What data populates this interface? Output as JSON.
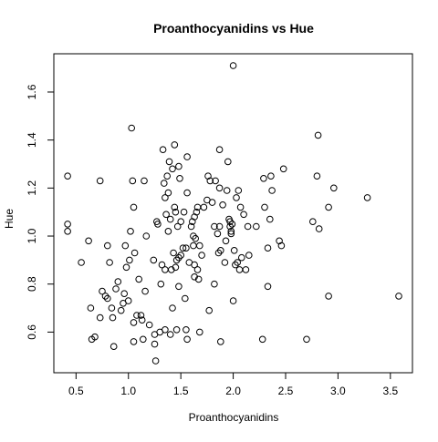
{
  "chart_data": {
    "type": "scatter",
    "title": "Proanthocyanidins vs Hue",
    "xlabel": "Proanthocyanidins",
    "ylabel": "Hue",
    "xlim": [
      0.41,
      3.58
    ],
    "ylim": [
      0.48,
      1.71
    ],
    "xticks": [
      0.5,
      1.0,
      1.5,
      2.0,
      2.5,
      3.0,
      3.5
    ],
    "xtick_labels": [
      "0.5",
      "1.0",
      "1.5",
      "2.0",
      "2.5",
      "3.0",
      "3.5"
    ],
    "yticks": [
      0.6,
      0.8,
      1.0,
      1.2,
      1.4,
      1.6
    ],
    "ytick_labels": [
      "0.6",
      "0.8",
      "1.0",
      "1.2",
      "1.4",
      "1.6"
    ],
    "grid": false,
    "legend": "none",
    "points": [
      [
        0.42,
        1.25
      ],
      [
        0.42,
        1.05
      ],
      [
        0.42,
        1.02
      ],
      [
        0.55,
        0.89
      ],
      [
        0.62,
        0.98
      ],
      [
        0.64,
        0.7
      ],
      [
        0.65,
        0.57
      ],
      [
        0.68,
        0.58
      ],
      [
        0.73,
        1.23
      ],
      [
        0.73,
        0.66
      ],
      [
        0.75,
        0.77
      ],
      [
        0.78,
        0.75
      ],
      [
        0.8,
        0.96
      ],
      [
        0.8,
        0.74
      ],
      [
        0.82,
        0.89
      ],
      [
        0.84,
        0.7
      ],
      [
        0.85,
        0.66
      ],
      [
        0.86,
        0.54
      ],
      [
        0.88,
        0.78
      ],
      [
        0.9,
        0.81
      ],
      [
        0.93,
        0.69
      ],
      [
        0.95,
        0.72
      ],
      [
        0.96,
        0.76
      ],
      [
        0.97,
        0.96
      ],
      [
        0.98,
        0.87
      ],
      [
        1.0,
        0.73
      ],
      [
        1.01,
        0.9
      ],
      [
        1.02,
        1.02
      ],
      [
        1.03,
        1.45
      ],
      [
        1.04,
        1.23
      ],
      [
        1.05,
        1.12
      ],
      [
        1.05,
        0.64
      ],
      [
        1.05,
        0.56
      ],
      [
        1.06,
        0.93
      ],
      [
        1.08,
        0.67
      ],
      [
        1.1,
        0.82
      ],
      [
        1.12,
        0.67
      ],
      [
        1.13,
        0.65
      ],
      [
        1.14,
        0.57
      ],
      [
        1.15,
        1.23
      ],
      [
        1.16,
        0.77
      ],
      [
        1.17,
        1.0
      ],
      [
        1.2,
        0.63
      ],
      [
        1.24,
        0.9
      ],
      [
        1.25,
        0.59
      ],
      [
        1.25,
        0.55
      ],
      [
        1.26,
        0.48
      ],
      [
        1.27,
        1.06
      ],
      [
        1.28,
        1.05
      ],
      [
        1.3,
        0.6
      ],
      [
        1.31,
        0.8
      ],
      [
        1.32,
        0.88
      ],
      [
        1.33,
        1.36
      ],
      [
        1.34,
        1.22
      ],
      [
        1.35,
        1.16
      ],
      [
        1.35,
        0.86
      ],
      [
        1.35,
        0.61
      ],
      [
        1.36,
        1.09
      ],
      [
        1.37,
        1.25
      ],
      [
        1.38,
        1.02
      ],
      [
        1.38,
        1.18
      ],
      [
        1.39,
        1.31
      ],
      [
        1.4,
        1.07
      ],
      [
        1.4,
        0.59
      ],
      [
        1.41,
        0.86
      ],
      [
        1.42,
        1.28
      ],
      [
        1.42,
        0.7
      ],
      [
        1.43,
        0.93
      ],
      [
        1.44,
        1.38
      ],
      [
        1.44,
        1.12
      ],
      [
        1.45,
        1.1
      ],
      [
        1.45,
        0.87
      ],
      [
        1.46,
        0.9
      ],
      [
        1.46,
        0.61
      ],
      [
        1.47,
        1.04
      ],
      [
        1.48,
        0.91
      ],
      [
        1.48,
        1.29
      ],
      [
        1.48,
        0.79
      ],
      [
        1.49,
        1.24
      ],
      [
        1.5,
        0.92
      ],
      [
        1.5,
        1.06
      ],
      [
        1.52,
        0.95
      ],
      [
        1.53,
        1.1
      ],
      [
        1.54,
        0.74
      ],
      [
        1.55,
        0.95
      ],
      [
        1.55,
        0.61
      ],
      [
        1.56,
        1.18
      ],
      [
        1.56,
        1.33
      ],
      [
        1.56,
        0.57
      ],
      [
        1.58,
        0.89
      ],
      [
        1.6,
        1.04
      ],
      [
        1.61,
        1.06
      ],
      [
        1.62,
        1.0
      ],
      [
        1.62,
        0.96
      ],
      [
        1.63,
        1.08
      ],
      [
        1.63,
        0.88
      ],
      [
        1.63,
        0.83
      ],
      [
        1.64,
        0.99
      ],
      [
        1.65,
        1.1
      ],
      [
        1.66,
        1.12
      ],
      [
        1.66,
        0.86
      ],
      [
        1.67,
        0.82
      ],
      [
        1.68,
        0.96
      ],
      [
        1.68,
        0.6
      ],
      [
        1.7,
        0.92
      ],
      [
        1.72,
        1.12
      ],
      [
        1.75,
        1.15
      ],
      [
        1.76,
        1.25
      ],
      [
        1.77,
        0.69
      ],
      [
        1.78,
        1.23
      ],
      [
        1.8,
        1.14
      ],
      [
        1.82,
        1.04
      ],
      [
        1.82,
        0.8
      ],
      [
        1.83,
        1.23
      ],
      [
        1.85,
        1.01
      ],
      [
        1.86,
        0.93
      ],
      [
        1.87,
        1.2
      ],
      [
        1.87,
        1.36
      ],
      [
        1.87,
        1.04
      ],
      [
        1.88,
        0.56
      ],
      [
        1.88,
        0.94
      ],
      [
        1.9,
        1.13
      ],
      [
        1.92,
        0.89
      ],
      [
        1.93,
        0.98
      ],
      [
        1.94,
        1.19
      ],
      [
        1.95,
        1.31
      ],
      [
        1.96,
        1.07
      ],
      [
        1.97,
        1.06
      ],
      [
        1.97,
        1.04
      ],
      [
        1.98,
        1.02
      ],
      [
        1.98,
        1.01
      ],
      [
        1.99,
        1.05
      ],
      [
        2.0,
        1.71
      ],
      [
        2.0,
        0.73
      ],
      [
        2.01,
        0.94
      ],
      [
        2.02,
        0.88
      ],
      [
        2.03,
        1.16
      ],
      [
        2.04,
        0.89
      ],
      [
        2.05,
        1.19
      ],
      [
        2.06,
        0.86
      ],
      [
        2.07,
        1.12
      ],
      [
        2.08,
        0.91
      ],
      [
        2.1,
        1.09
      ],
      [
        2.12,
        0.86
      ],
      [
        2.14,
        1.04
      ],
      [
        2.15,
        0.92
      ],
      [
        2.22,
        1.04
      ],
      [
        2.28,
        0.57
      ],
      [
        2.29,
        1.24
      ],
      [
        2.3,
        1.12
      ],
      [
        2.33,
        0.95
      ],
      [
        2.33,
        0.79
      ],
      [
        2.35,
        1.07
      ],
      [
        2.36,
        1.25
      ],
      [
        2.37,
        1.19
      ],
      [
        2.44,
        0.98
      ],
      [
        2.46,
        0.96
      ],
      [
        2.48,
        1.28
      ],
      [
        2.7,
        0.57
      ],
      [
        2.76,
        1.06
      ],
      [
        2.8,
        1.25
      ],
      [
        2.81,
        1.42
      ],
      [
        2.82,
        1.03
      ],
      [
        2.91,
        0.75
      ],
      [
        2.91,
        1.12
      ],
      [
        2.96,
        1.2
      ],
      [
        3.28,
        1.16
      ],
      [
        3.58,
        0.75
      ]
    ]
  }
}
